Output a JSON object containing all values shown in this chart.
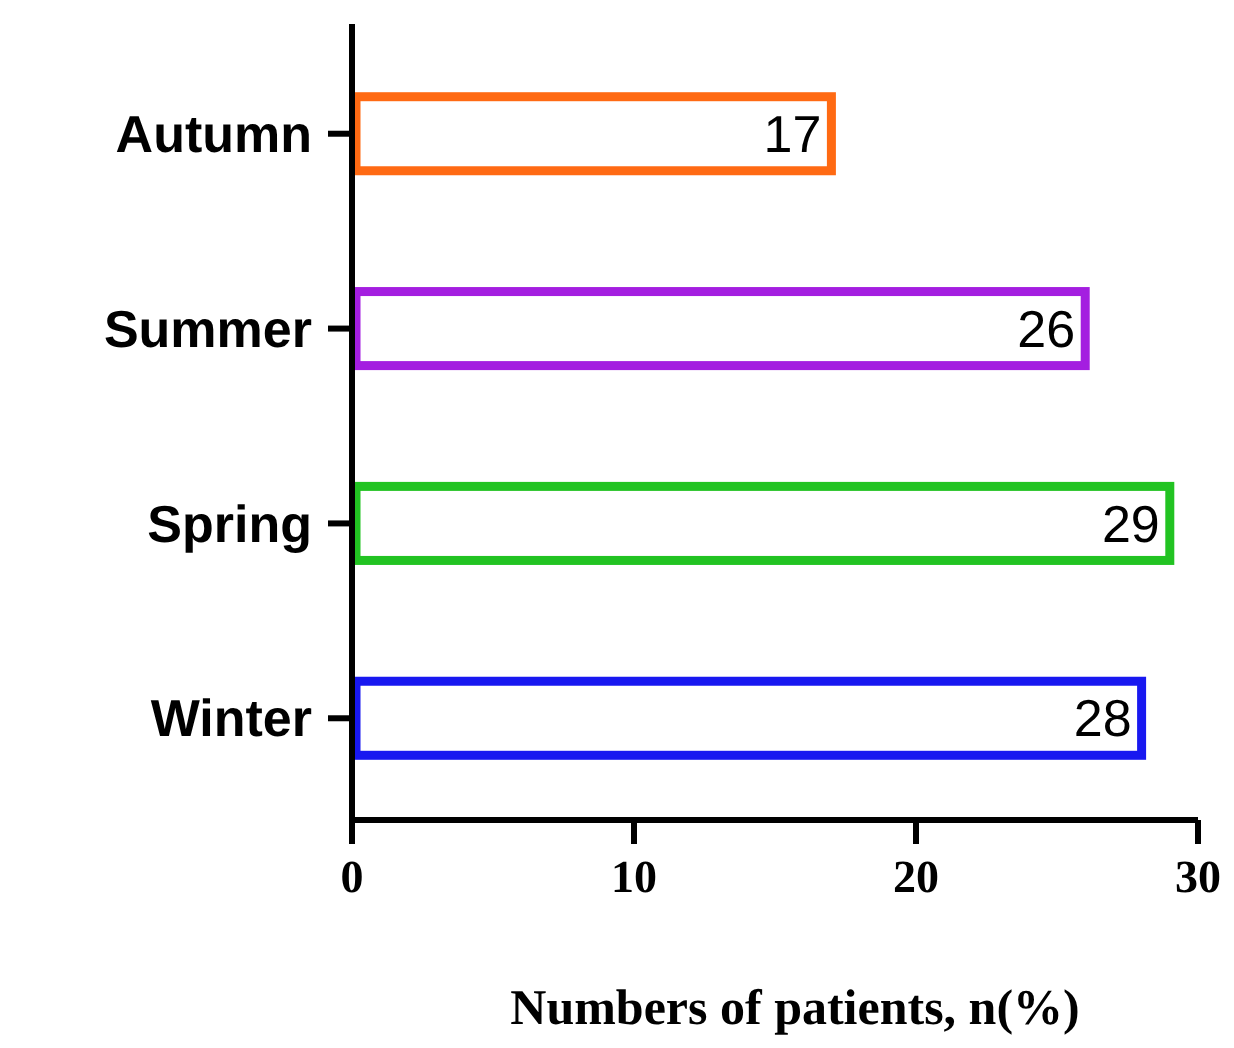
{
  "chart_data": {
    "type": "bar",
    "orientation": "horizontal",
    "xlabel": "Numbers of patients, n(%)",
    "categories": [
      "Autumn",
      "Summer",
      "Spring",
      "Winter"
    ],
    "values": [
      17,
      26,
      29,
      28
    ],
    "colors": [
      "#ff6a13",
      "#a41ee0",
      "#22c322",
      "#1818f0"
    ],
    "xlim": [
      0,
      30
    ],
    "xticks": [
      0,
      10,
      20,
      30
    ],
    "data_labels": true,
    "grid": false
  }
}
